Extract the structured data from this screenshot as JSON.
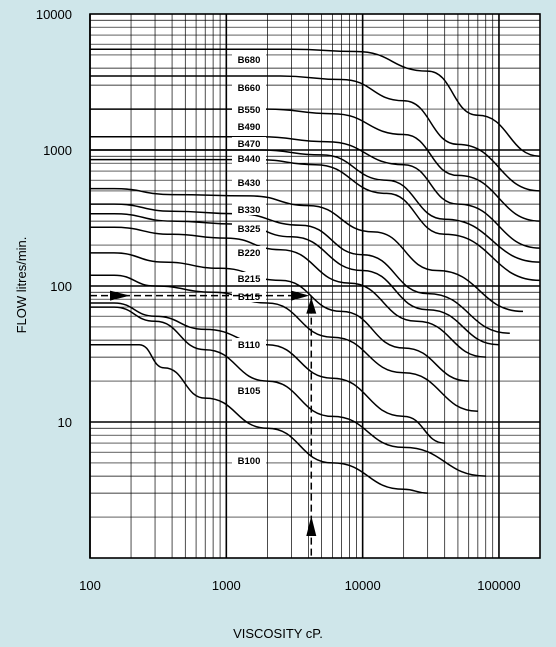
{
  "chart_data": {
    "type": "line",
    "xlabel": "VISCOSITY cP.",
    "ylabel": "FLOW litres/min.",
    "xscale": "log",
    "yscale": "log",
    "xlim": [
      100,
      200000
    ],
    "ylim": [
      1,
      10000
    ],
    "x_tick_labels": [
      {
        "value": 100,
        "label": "100"
      },
      {
        "value": 1000,
        "label": "1000"
      },
      {
        "value": 10000,
        "label": "10000"
      },
      {
        "value": 100000,
        "label": "100000"
      }
    ],
    "y_tick_labels": [
      {
        "value": 10000,
        "label": "10000"
      },
      {
        "value": 1000,
        "label": "1000"
      },
      {
        "value": 100,
        "label": "100"
      },
      {
        "value": 10,
        "label": "10"
      }
    ],
    "grid": true,
    "series": [
      {
        "name": "B680",
        "x": [
          100,
          3000,
          9000,
          30000,
          70000,
          200000
        ],
        "y": [
          5500,
          5500,
          5300,
          3800,
          1800,
          900
        ]
      },
      {
        "name": "B660",
        "x": [
          100,
          2500,
          7000,
          20000,
          50000,
          200000
        ],
        "y": [
          3500,
          3500,
          3300,
          2300,
          1100,
          500
        ]
      },
      {
        "name": "B550",
        "x": [
          100,
          2000,
          6000,
          20000,
          50000,
          200000
        ],
        "y": [
          2000,
          2000,
          1850,
          1300,
          650,
          300
        ]
      },
      {
        "name": "B490",
        "x": [
          100,
          1800,
          5500,
          20000,
          50000,
          200000
        ],
        "y": [
          1250,
          1250,
          1150,
          780,
          400,
          190
        ]
      },
      {
        "name": "B470",
        "x": [
          100,
          1800,
          5000,
          15000,
          40000,
          200000
        ],
        "y": [
          1000,
          1000,
          920,
          600,
          310,
          150
        ]
      },
      {
        "name": "B440",
        "x": [
          100,
          1700,
          4500,
          15000,
          40000,
          200000
        ],
        "y": [
          850,
          850,
          780,
          480,
          240,
          110
        ]
      },
      {
        "name": "B430",
        "x": [
          100,
          150,
          400,
          1500,
          4000,
          12000,
          35000,
          150000
        ],
        "y": [
          520,
          520,
          470,
          460,
          390,
          250,
          130,
          65
        ]
      },
      {
        "name": "B330",
        "x": [
          100,
          150,
          400,
          1200,
          3500,
          10000,
          30000,
          120000
        ],
        "y": [
          400,
          400,
          355,
          340,
          280,
          170,
          88,
          45
        ]
      },
      {
        "name": "B325",
        "x": [
          100,
          150,
          400,
          1200,
          3000,
          10000,
          30000,
          100000
        ],
        "y": [
          340,
          340,
          300,
          285,
          230,
          130,
          67,
          37
        ]
      },
      {
        "name": "B220",
        "x": [
          100,
          150,
          400,
          1000,
          2500,
          8000,
          25000,
          80000
        ],
        "y": [
          270,
          270,
          240,
          225,
          185,
          105,
          55,
          30
        ]
      },
      {
        "name": "B215",
        "x": [
          100,
          150,
          350,
          900,
          2500,
          7000,
          20000,
          60000
        ],
        "y": [
          175,
          175,
          150,
          135,
          110,
          65,
          35,
          20
        ]
      },
      {
        "name": "B115",
        "x": [
          100,
          150,
          300,
          800,
          2000,
          6000,
          20000,
          70000
        ],
        "y": [
          120,
          120,
          100,
          90,
          75,
          42,
          23,
          12
        ]
      },
      {
        "name": "B110",
        "x": [
          100,
          150,
          300,
          700,
          2000,
          6000,
          20000,
          40000
        ],
        "y": [
          75,
          75,
          60,
          48,
          37,
          21,
          11,
          7
        ]
      },
      {
        "name": "B105",
        "x": [
          100,
          150,
          300,
          700,
          2000,
          6000,
          20000,
          80000
        ],
        "y": [
          70,
          70,
          55,
          34,
          20,
          11,
          6.5,
          4
        ]
      },
      {
        "name": "B100",
        "x": [
          100,
          230,
          350,
          700,
          2000,
          6000,
          20000,
          30000
        ],
        "y": [
          37,
          37,
          25,
          15,
          9,
          5,
          3.2,
          3
        ]
      }
    ],
    "series_labels": [
      "B680",
      "B660",
      "B550",
      "B490",
      "B470",
      "B440",
      "B430",
      "B330",
      "B325",
      "B220",
      "B215",
      "B115",
      "B110",
      "B105",
      "B100"
    ],
    "example_reading": {
      "viscosity": 4200,
      "flow": 85
    }
  }
}
